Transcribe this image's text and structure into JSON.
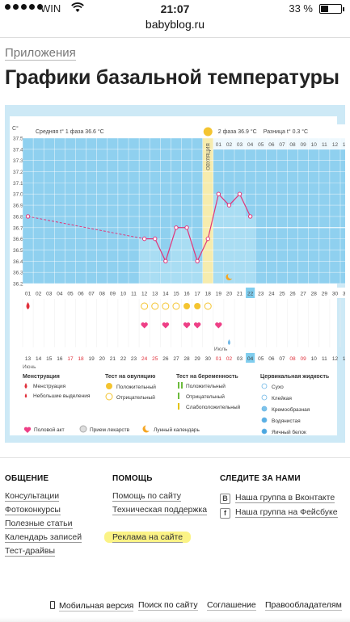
{
  "status_bar": {
    "carrier": "WIN",
    "time": "21:07",
    "battery": "33 %",
    "battery_level": 0.33
  },
  "url": "babyblog.ru",
  "breadcrumb": "Приложения",
  "page_title": "Графики базальной температуры",
  "chart": {
    "axis_unit": "C°",
    "phase1_label": "Средняя t° 1 фаза 36.6 °C",
    "phase2_label": "2 фаза 36.9 °C",
    "diff_label": "Разница t° 0.3 °C",
    "ovulation_label": "ОВУЛЯЦИЯ",
    "y_ticks": [
      "37.5",
      "37.4",
      "37.3",
      "37.2",
      "37.1",
      "37.0",
      "36.9",
      "36.8",
      "36.7",
      "36.6",
      "36.5",
      "36.4",
      "36.3",
      "36.2"
    ],
    "cycle_days_top_phase2": [
      "01",
      "02",
      "03",
      "04",
      "05",
      "06",
      "07",
      "08",
      "09",
      "10",
      "11",
      "12",
      "13",
      "14"
    ],
    "cycle_days": [
      "01",
      "02",
      "03",
      "04",
      "05",
      "06",
      "07",
      "08",
      "09",
      "10",
      "11",
      "12",
      "13",
      "14",
      "15",
      "16",
      "17",
      "18",
      "19",
      "20",
      "21",
      "22",
      "23",
      "24",
      "25",
      "26",
      "27",
      "28",
      "29",
      "30",
      "31",
      "32"
    ],
    "current_cycle_day": "22",
    "dates_row": [
      "13",
      "14",
      "15",
      "16",
      "17",
      "18",
      "19",
      "20",
      "21",
      "22",
      "23",
      "24",
      "25",
      "26",
      "27",
      "28",
      "29",
      "30",
      "01",
      "02",
      "03",
      "04",
      "05",
      "06",
      "07",
      "08",
      "09",
      "10",
      "11",
      "12",
      "13",
      "14"
    ],
    "weekend_dates_idx": [
      4,
      5,
      11,
      12,
      18,
      19,
      25,
      26
    ],
    "month_labels": {
      "start": "Июнь",
      "july": "Июль"
    },
    "today_date": "04",
    "legend": {
      "menstruation": {
        "title": "Менструация",
        "items": [
          "Менструация",
          "Небольшие выделения"
        ]
      },
      "ovulation_test": {
        "title": "Тест на овуляцию",
        "items": [
          "Положительный",
          "Отрицательный"
        ]
      },
      "pregnancy_test": {
        "title": "Тест на беременность",
        "items": [
          "Положительный",
          "Отрицательный",
          "Слабоположительный"
        ]
      },
      "cervical_fluid": {
        "title": "Цервикальная жидкость",
        "items": [
          "Сухо",
          "Клейкая",
          "Кремообразная",
          "Водянистая",
          "Яичный белок"
        ]
      },
      "other": [
        "Половой акт",
        "Прием лекарств",
        "Лунный календарь"
      ]
    }
  },
  "chart_data": {
    "type": "line",
    "x": [
      1,
      12,
      13,
      14,
      15,
      16,
      17,
      18,
      19,
      20,
      21,
      22
    ],
    "values": [
      36.8,
      36.6,
      36.6,
      36.4,
      36.7,
      36.7,
      36.4,
      36.6,
      37.0,
      36.9,
      37.0,
      36.8
    ],
    "ylim": [
      36.2,
      37.5
    ],
    "ovulation_day": 18,
    "intercourse_days": [
      12,
      14,
      16,
      17,
      19
    ],
    "ovulation_tests": {
      "negative": [
        12,
        13,
        14,
        15,
        18
      ],
      "positive": [
        16,
        17
      ]
    },
    "menstruation_days": [
      1
    ],
    "moon_day": 20,
    "coverline": 36.7
  },
  "footer": {
    "col1": {
      "title": "ОБЩЕНИЕ",
      "links": [
        "Консультации",
        "Фотоконкурсы",
        "Полезные статьи",
        "Календарь записей",
        "Тест-драйвы"
      ]
    },
    "col2": {
      "title": "ПОМОЩЬ",
      "links": [
        "Помощь по сайту",
        "Техническая поддержка"
      ],
      "ad_link": "Реклама на сайте"
    },
    "col3": {
      "title": "СЛЕДИТЕ ЗА НАМИ",
      "links": [
        "Наша группа в Вконтакте",
        "Наша группа на Фейсбуке"
      ],
      "icons": [
        "В",
        "f"
      ]
    },
    "bottom": [
      "Мобильная версия",
      "Поиск по сайту",
      "Соглашение",
      "Правообладателям"
    ]
  },
  "colors": {
    "chart_bg": "#cde9f6",
    "phase_blue": "#8fd0ef",
    "line": "#e0367a",
    "ovulation": "#f6ecae",
    "heart": "#ee3f86",
    "gold": "#f4c430"
  }
}
